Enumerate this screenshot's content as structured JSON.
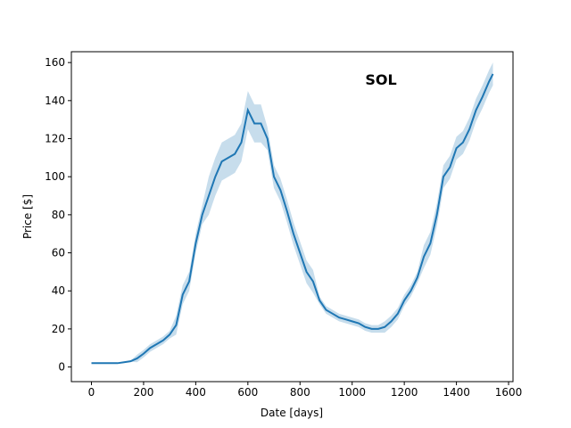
{
  "chart_data": {
    "type": "line",
    "annotation": "SOL",
    "xlabel": "Date [days]",
    "ylabel": "Price [$]",
    "color": "#1f77b4",
    "x": [
      0,
      25,
      50,
      75,
      100,
      125,
      150,
      175,
      200,
      225,
      250,
      275,
      300,
      325,
      350,
      375,
      400,
      425,
      450,
      475,
      500,
      525,
      550,
      575,
      600,
      625,
      650,
      675,
      700,
      725,
      750,
      775,
      800,
      825,
      850,
      875,
      900,
      925,
      950,
      975,
      1000,
      1025,
      1050,
      1075,
      1100,
      1125,
      1150,
      1175,
      1200,
      1225,
      1250,
      1275,
      1300,
      1325,
      1350,
      1375,
      1400,
      1425,
      1450,
      1475,
      1500,
      1525,
      1540
    ],
    "values": [
      2,
      2,
      2,
      2,
      2,
      2.5,
      3,
      4.5,
      7,
      10,
      12,
      14,
      17,
      22,
      38,
      45,
      65,
      80,
      90,
      100,
      108,
      110,
      112,
      118,
      135,
      128,
      128,
      120,
      100,
      93,
      82,
      70,
      60,
      50,
      45,
      35,
      30,
      28,
      26,
      25,
      24,
      23,
      21,
      20,
      20,
      21,
      24,
      28,
      35,
      40,
      47,
      58,
      65,
      80,
      100,
      105,
      115,
      118,
      125,
      135,
      142,
      150,
      154
    ],
    "lower": [
      1.7,
      1.7,
      1.7,
      1.7,
      1.7,
      2.2,
      2.7,
      2.5,
      5,
      8,
      10,
      12,
      15,
      17,
      33,
      40,
      60,
      75,
      80,
      90,
      98,
      100,
      102,
      108,
      125,
      118,
      118,
      114,
      94,
      87,
      76,
      64,
      54,
      44,
      39,
      33,
      28,
      26,
      24,
      23,
      22,
      21,
      19,
      18,
      18,
      18,
      21,
      25,
      32,
      37,
      44,
      52,
      59,
      74,
      94,
      99,
      109,
      112,
      119,
      129,
      136,
      144,
      148
    ],
    "upper": [
      2.3,
      2.3,
      2.3,
      2.3,
      2.3,
      2.8,
      3.3,
      6.5,
      9,
      12,
      14,
      16,
      19,
      27,
      43,
      50,
      70,
      85,
      100,
      110,
      118,
      120,
      122,
      128,
      145,
      138,
      138,
      126,
      106,
      99,
      88,
      76,
      66,
      56,
      51,
      37,
      32,
      30,
      28,
      27,
      26,
      25,
      23,
      22,
      22,
      24,
      27,
      31,
      38,
      43,
      50,
      64,
      71,
      86,
      106,
      111,
      121,
      124,
      131,
      141,
      148,
      156,
      160
    ],
    "xlim": [
      -77,
      1617
    ],
    "ylim": [
      -7.7,
      165.7
    ],
    "xticks": [
      0,
      200,
      400,
      600,
      800,
      1000,
      1200,
      1400,
      1600
    ],
    "yticks": [
      0,
      20,
      40,
      60,
      80,
      100,
      120,
      140,
      160
    ]
  }
}
